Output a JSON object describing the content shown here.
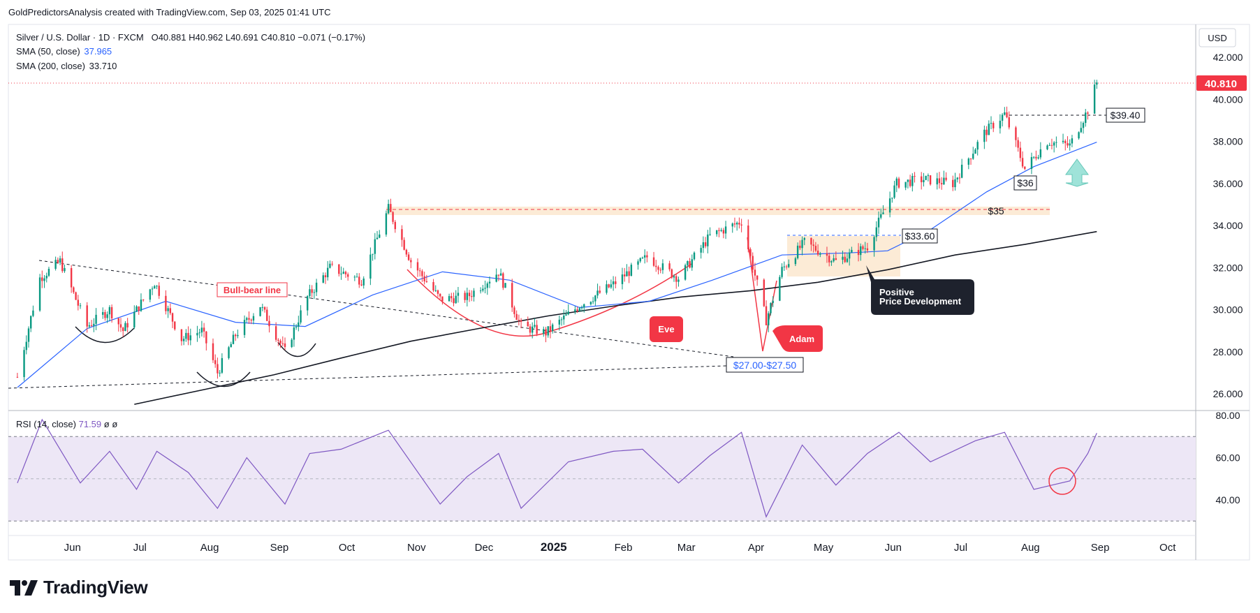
{
  "header": {
    "attribution": "GoldPredictorsAnalysis created with TradingView.com, Sep 03, 2025 01:41 UTC"
  },
  "legend": {
    "symbol": "Silver / U.S. Dollar · 1D · FXCM",
    "ohlc": "O40.881  H40.962  L40.691  C40.810  −0.071 (−0.17%)",
    "sma50_label": "SMA (50, close)",
    "sma50_value": "37.965",
    "sma200_label": "SMA (200, close)",
    "sma200_value": "33.710",
    "rsi_label": "RSI (14, close)",
    "rsi_value": "71.59",
    "rsi_extra": "ø  ø"
  },
  "currency": "USD",
  "last_price_label": "40.810",
  "logo_text": "TradingView",
  "colors": {
    "up": "#089981",
    "down": "#f23645",
    "sma50": "#2962ff",
    "sma200": "#131722",
    "rsi": "#7e57c2",
    "rsi_band": "#ede7f6",
    "zone": "#fbe3c4",
    "annot_red": "#f23645"
  },
  "annotations": {
    "bull_bear": "Bull-bear line",
    "eve": "Eve",
    "adam": "Adam",
    "positive_line1": "Positive",
    "positive_line2": "Price Development",
    "support_range": "$27.00-$27.50",
    "level_3360": "$33.60",
    "level_35": "$35",
    "level_36": "$36",
    "level_3940": "$39.40"
  },
  "chart_data": {
    "type": "line",
    "price_axis": {
      "ticks": [
        26,
        28,
        30,
        32,
        34,
        36,
        38,
        40,
        42
      ],
      "tick_labels": [
        "26.000",
        "28.000",
        "30.000",
        "32.000",
        "34.000",
        "36.000",
        "38.000",
        "40.000",
        "42.000"
      ],
      "range": [
        25.4,
        42.7
      ]
    },
    "rsi_axis": {
      "ticks": [
        40,
        60,
        80
      ],
      "tick_labels": [
        "40.00",
        "60.00",
        "80.00"
      ],
      "range": [
        28,
        80
      ],
      "band": [
        30,
        70
      ]
    },
    "x_axis": {
      "labels": [
        "Jun",
        "Jul",
        "Aug",
        "Sep",
        "Oct",
        "Nov",
        "Dec",
        "2025",
        "Feb",
        "Mar",
        "Apr",
        "May",
        "Jun",
        "Jul",
        "Aug",
        "Sep",
        "Oct"
      ],
      "bold_labels": [
        "2025"
      ]
    },
    "series": [
      {
        "name": "Silver / U.S. Dollar",
        "x": [
          "2024-05-10",
          "2024-05-20",
          "2024-05-29",
          "2024-06-10",
          "2024-06-20",
          "2024-06-26",
          "2024-07-10",
          "2024-07-22",
          "2024-07-31",
          "2024-08-07",
          "2024-08-15",
          "2024-08-26",
          "2024-09-06",
          "2024-09-16",
          "2024-09-26",
          "2024-10-10",
          "2024-10-22",
          "2024-11-01",
          "2024-11-14",
          "2024-11-26",
          "2024-12-10",
          "2024-12-20",
          "2024-12-31",
          "2025-01-15",
          "2025-01-30",
          "2025-02-14",
          "2025-02-28",
          "2025-03-14",
          "2025-03-28",
          "2025-04-08",
          "2025-04-15",
          "2025-04-25",
          "2025-05-09",
          "2025-05-23",
          "2025-06-05",
          "2025-06-17",
          "2025-06-30",
          "2025-07-14",
          "2025-07-23",
          "2025-08-01",
          "2025-08-11",
          "2025-08-21",
          "2025-08-29",
          "2025-09-02"
        ],
        "values": [
          26.8,
          31.5,
          32.3,
          29.2,
          30.0,
          29.0,
          31.3,
          28.6,
          29.0,
          27.0,
          28.8,
          30.2,
          28.0,
          30.6,
          32.0,
          31.4,
          34.8,
          32.3,
          30.5,
          30.6,
          31.8,
          29.2,
          28.9,
          30.2,
          31.2,
          32.5,
          31.5,
          33.5,
          34.2,
          29.5,
          31.9,
          33.2,
          32.3,
          33.0,
          36.0,
          36.2,
          36.0,
          38.4,
          39.3,
          36.7,
          38.0,
          37.8,
          39.5,
          40.81
        ]
      },
      {
        "name": "SMA (50, close)",
        "x": [
          "2024-05-10",
          "2024-06-10",
          "2024-07-15",
          "2024-08-15",
          "2024-09-15",
          "2024-10-15",
          "2024-11-15",
          "2024-12-15",
          "2025-01-15",
          "2025-02-15",
          "2025-03-15",
          "2025-04-15",
          "2025-05-15",
          "2025-06-01",
          "2025-06-20",
          "2025-07-15",
          "2025-08-05",
          "2025-09-02"
        ],
        "values": [
          26.3,
          29.1,
          30.4,
          29.4,
          29.2,
          30.7,
          31.8,
          31.4,
          30.1,
          30.4,
          31.4,
          32.6,
          32.7,
          32.8,
          33.8,
          35.6,
          36.8,
          37.965
        ]
      },
      {
        "name": "SMA (200, close)",
        "x": [
          "2024-07-01",
          "2024-08-01",
          "2024-09-01",
          "2024-10-01",
          "2024-11-01",
          "2024-12-01",
          "2025-01-01",
          "2025-02-01",
          "2025-03-01",
          "2025-04-01",
          "2025-05-01",
          "2025-06-01",
          "2025-07-01",
          "2025-08-01",
          "2025-09-02"
        ],
        "values": [
          25.5,
          26.2,
          26.9,
          27.7,
          28.5,
          29.1,
          29.7,
          30.2,
          30.6,
          30.9,
          31.3,
          31.9,
          32.6,
          33.1,
          33.71
        ]
      },
      {
        "name": "RSI (14, close)",
        "x": [
          "2024-05-10",
          "2024-05-21",
          "2024-06-07",
          "2024-06-20",
          "2024-07-02",
          "2024-07-11",
          "2024-07-25",
          "2024-08-07",
          "2024-08-20",
          "2024-09-06",
          "2024-09-17",
          "2024-10-01",
          "2024-10-22",
          "2024-11-14",
          "2024-11-26",
          "2024-12-10",
          "2024-12-20",
          "2025-01-10",
          "2025-01-30",
          "2025-02-12",
          "2025-02-28",
          "2025-03-14",
          "2025-03-28",
          "2025-04-08",
          "2025-04-24",
          "2025-05-09",
          "2025-05-23",
          "2025-06-06",
          "2025-06-20",
          "2025-07-10",
          "2025-07-23",
          "2025-08-05",
          "2025-08-21",
          "2025-08-29",
          "2025-09-02"
        ],
        "values": [
          48,
          78,
          48,
          63,
          45,
          63,
          53,
          36,
          60,
          38,
          62,
          64,
          73,
          38,
          51,
          62,
          36,
          58,
          63,
          64,
          48,
          61,
          72,
          32,
          66,
          47,
          62,
          72,
          58,
          68,
          72,
          45,
          49,
          62,
          71.59
        ]
      }
    ],
    "levels": [
      {
        "label": "$39.40",
        "value": 39.4
      },
      {
        "label": "$35",
        "value": 35.0
      },
      {
        "label": "$33.60",
        "value": 33.6
      },
      {
        "label": "$36",
        "value": 36.0
      },
      {
        "label": "$27.00-$27.50",
        "value": 27.5
      }
    ],
    "grid": false,
    "legend_position": "top-left"
  }
}
